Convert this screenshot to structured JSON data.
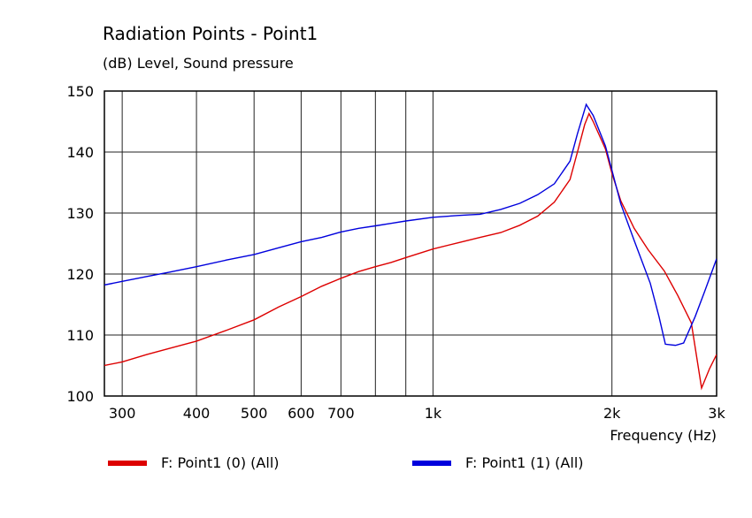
{
  "chart_data": {
    "type": "line",
    "title": "Radiation Points - Point1",
    "subtitle": "(dB)  Level, Sound pressure",
    "xlabel": "Frequency  (Hz)",
    "x_scale": "log",
    "xlim": [
      280,
      3000
    ],
    "ylim": [
      100,
      150
    ],
    "y_ticks": [
      100,
      110,
      120,
      130,
      140,
      150
    ],
    "x_tick_labels": [
      {
        "value": 300,
        "label": "300"
      },
      {
        "value": 400,
        "label": "400"
      },
      {
        "value": 500,
        "label": "500"
      },
      {
        "value": 600,
        "label": "600"
      },
      {
        "value": 700,
        "label": "700"
      },
      {
        "value": 1000,
        "label": "1k"
      },
      {
        "value": 2000,
        "label": "2k"
      },
      {
        "value": 3000,
        "label": "3k"
      }
    ],
    "x_gridlines": [
      300,
      400,
      500,
      600,
      700,
      800,
      900,
      1000,
      2000,
      3000
    ],
    "grid": true,
    "legend_position": "bottom",
    "series": [
      {
        "name": "F: Point1 (0)  (All)",
        "color": "#dd0000",
        "points": [
          [
            280,
            105.0
          ],
          [
            300,
            105.6
          ],
          [
            330,
            106.8
          ],
          [
            360,
            107.8
          ],
          [
            400,
            109.0
          ],
          [
            450,
            110.8
          ],
          [
            500,
            112.5
          ],
          [
            550,
            114.6
          ],
          [
            600,
            116.3
          ],
          [
            650,
            118.0
          ],
          [
            700,
            119.3
          ],
          [
            750,
            120.4
          ],
          [
            800,
            121.2
          ],
          [
            850,
            121.9
          ],
          [
            900,
            122.7
          ],
          [
            1000,
            124.1
          ],
          [
            1100,
            125.1
          ],
          [
            1200,
            126.0
          ],
          [
            1300,
            126.8
          ],
          [
            1400,
            128.0
          ],
          [
            1500,
            129.5
          ],
          [
            1600,
            131.8
          ],
          [
            1700,
            135.5
          ],
          [
            1750,
            140.0
          ],
          [
            1800,
            144.5
          ],
          [
            1830,
            146.3
          ],
          [
            1860,
            145.0
          ],
          [
            1950,
            140.5
          ],
          [
            2000,
            136.5
          ],
          [
            2070,
            132.0
          ],
          [
            2180,
            127.5
          ],
          [
            2300,
            124.0
          ],
          [
            2450,
            120.5
          ],
          [
            2580,
            116.5
          ],
          [
            2720,
            112.0
          ],
          [
            2830,
            101.3
          ],
          [
            2920,
            104.5
          ],
          [
            3000,
            106.8
          ]
        ]
      },
      {
        "name": "F: Point1 (1)  (All)",
        "color": "#0000dd",
        "points": [
          [
            280,
            118.2
          ],
          [
            300,
            118.8
          ],
          [
            330,
            119.6
          ],
          [
            360,
            120.3
          ],
          [
            400,
            121.2
          ],
          [
            450,
            122.3
          ],
          [
            500,
            123.2
          ],
          [
            550,
            124.3
          ],
          [
            600,
            125.3
          ],
          [
            650,
            126.0
          ],
          [
            700,
            126.9
          ],
          [
            750,
            127.5
          ],
          [
            800,
            127.9
          ],
          [
            850,
            128.3
          ],
          [
            900,
            128.7
          ],
          [
            1000,
            129.3
          ],
          [
            1100,
            129.6
          ],
          [
            1150,
            129.7
          ],
          [
            1200,
            129.8
          ],
          [
            1300,
            130.6
          ],
          [
            1400,
            131.6
          ],
          [
            1500,
            133.0
          ],
          [
            1600,
            134.8
          ],
          [
            1700,
            138.5
          ],
          [
            1750,
            143.0
          ],
          [
            1810,
            147.8
          ],
          [
            1860,
            146.0
          ],
          [
            1950,
            141.0
          ],
          [
            2000,
            137.0
          ],
          [
            2070,
            131.5
          ],
          [
            2180,
            125.5
          ],
          [
            2320,
            118.5
          ],
          [
            2400,
            113.0
          ],
          [
            2460,
            108.5
          ],
          [
            2560,
            108.3
          ],
          [
            2640,
            108.7
          ],
          [
            2760,
            113.0
          ],
          [
            2860,
            117.0
          ],
          [
            3000,
            122.5
          ]
        ]
      }
    ]
  }
}
